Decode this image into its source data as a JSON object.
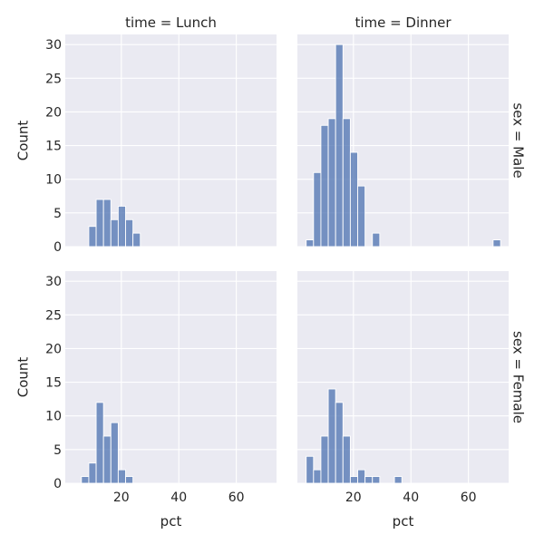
{
  "chart_data": {
    "type": "bar",
    "kind": "faceted-histogram",
    "col_titles": [
      "time = Lunch",
      "time = Dinner"
    ],
    "row_titles": [
      "sex = Male",
      "sex = Female"
    ],
    "xlabel": "pct",
    "ylabel": "Count",
    "xlim": [
      0.5,
      74
    ],
    "ylim": [
      0,
      31.5
    ],
    "xticks": [
      20,
      40,
      60
    ],
    "yticks": [
      0,
      5,
      10,
      15,
      20,
      25,
      30
    ],
    "grid": true,
    "bin_width": 2.56,
    "bin_start": 3.56,
    "bar_color": "#4c72b0",
    "panel_background": "#eaeaf2",
    "panels": [
      {
        "row": 0,
        "col": 0,
        "bins": [
          {
            "x0": 8.68,
            "x1": 11.24,
            "count": 3
          },
          {
            "x0": 11.24,
            "x1": 13.8,
            "count": 7
          },
          {
            "x0": 13.8,
            "x1": 16.36,
            "count": 7
          },
          {
            "x0": 16.36,
            "x1": 18.92,
            "count": 4
          },
          {
            "x0": 18.92,
            "x1": 21.48,
            "count": 6
          },
          {
            "x0": 21.48,
            "x1": 24.04,
            "count": 4
          },
          {
            "x0": 24.04,
            "x1": 26.6,
            "count": 2
          }
        ]
      },
      {
        "row": 0,
        "col": 1,
        "bins": [
          {
            "x0": 3.56,
            "x1": 6.12,
            "count": 1
          },
          {
            "x0": 6.12,
            "x1": 8.68,
            "count": 11
          },
          {
            "x0": 8.68,
            "x1": 11.24,
            "count": 18
          },
          {
            "x0": 11.24,
            "x1": 13.8,
            "count": 19
          },
          {
            "x0": 13.8,
            "x1": 16.36,
            "count": 30
          },
          {
            "x0": 16.36,
            "x1": 18.92,
            "count": 19
          },
          {
            "x0": 18.92,
            "x1": 21.48,
            "count": 14
          },
          {
            "x0": 21.48,
            "x1": 24.04,
            "count": 9
          },
          {
            "x0": 26.6,
            "x1": 29.16,
            "count": 2
          },
          {
            "x0": 68.6,
            "x1": 71.2,
            "count": 1
          }
        ]
      },
      {
        "row": 1,
        "col": 0,
        "bins": [
          {
            "x0": 6.12,
            "x1": 8.68,
            "count": 1
          },
          {
            "x0": 8.68,
            "x1": 11.24,
            "count": 3
          },
          {
            "x0": 11.24,
            "x1": 13.8,
            "count": 12
          },
          {
            "x0": 13.8,
            "x1": 16.36,
            "count": 7
          },
          {
            "x0": 16.36,
            "x1": 18.92,
            "count": 9
          },
          {
            "x0": 18.92,
            "x1": 21.48,
            "count": 2
          },
          {
            "x0": 21.48,
            "x1": 24.04,
            "count": 1
          }
        ]
      },
      {
        "row": 1,
        "col": 1,
        "bins": [
          {
            "x0": 3.56,
            "x1": 6.12,
            "count": 4
          },
          {
            "x0": 6.12,
            "x1": 8.68,
            "count": 2
          },
          {
            "x0": 8.68,
            "x1": 11.24,
            "count": 7
          },
          {
            "x0": 11.24,
            "x1": 13.8,
            "count": 14
          },
          {
            "x0": 13.8,
            "x1": 16.36,
            "count": 12
          },
          {
            "x0": 16.36,
            "x1": 18.92,
            "count": 7
          },
          {
            "x0": 18.92,
            "x1": 21.48,
            "count": 1
          },
          {
            "x0": 21.48,
            "x1": 24.04,
            "count": 2
          },
          {
            "x0": 24.04,
            "x1": 26.6,
            "count": 1
          },
          {
            "x0": 26.6,
            "x1": 29.16,
            "count": 1
          },
          {
            "x0": 34.28,
            "x1": 36.84,
            "count": 1
          }
        ]
      }
    ]
  }
}
